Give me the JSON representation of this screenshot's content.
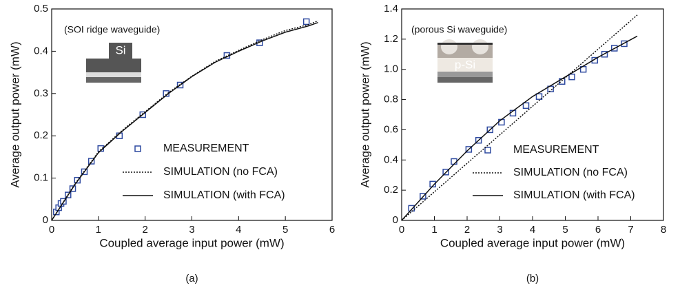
{
  "chart_data": [
    {
      "type": "line",
      "caption": "(a)",
      "x_label": "Coupled average input power (mW)",
      "y_label": "Average output power (mW)",
      "annotations": [
        "(SOI ridge waveguide)",
        "Si"
      ],
      "xlim": [
        0,
        6
      ],
      "xticks": [
        0,
        1,
        2,
        3,
        4,
        5,
        6
      ],
      "ylim": [
        0,
        0.5
      ],
      "yticks": [
        0,
        0.1,
        0.2,
        0.3,
        0.4,
        0.5
      ],
      "series": [
        {
          "name": "MEASUREMENT",
          "style": "markers",
          "color": "#2e4aa0",
          "x": [
            0.1,
            0.15,
            0.2,
            0.25,
            0.35,
            0.45,
            0.55,
            0.7,
            0.85,
            1.05,
            1.45,
            1.95,
            2.45,
            2.75,
            3.75,
            4.45,
            5.45
          ],
          "values": [
            0.02,
            0.03,
            0.04,
            0.045,
            0.06,
            0.075,
            0.095,
            0.115,
            0.14,
            0.17,
            0.2,
            0.25,
            0.3,
            0.32,
            0.39,
            0.42,
            0.47
          ]
        },
        {
          "name": "SIMULATION (no FCA)",
          "style": "dotted",
          "color": "#111111",
          "x": [
            0,
            0.5,
            1,
            1.5,
            2,
            2.5,
            3,
            3.5,
            4,
            4.5,
            5,
            5.5,
            5.7
          ],
          "values": [
            0,
            0.087,
            0.162,
            0.212,
            0.257,
            0.302,
            0.341,
            0.376,
            0.402,
            0.427,
            0.449,
            0.463,
            0.472
          ]
        },
        {
          "name": "SIMULATION (with FCA)",
          "style": "solid",
          "color": "#111111",
          "x": [
            0,
            0.5,
            1,
            1.5,
            2,
            2.5,
            3,
            3.5,
            4,
            4.5,
            5,
            5.5,
            5.7
          ],
          "values": [
            0,
            0.085,
            0.16,
            0.21,
            0.255,
            0.3,
            0.34,
            0.374,
            0.4,
            0.424,
            0.445,
            0.46,
            0.468
          ]
        }
      ]
    },
    {
      "type": "line",
      "caption": "(b)",
      "x_label": "Coupled average input power (mW)",
      "y_label": "Average output power (mW)",
      "annotations": [
        "(porous Si waveguide)",
        "p-Si"
      ],
      "xlim": [
        0,
        8
      ],
      "xticks": [
        0,
        1,
        2,
        3,
        4,
        5,
        6,
        7,
        8
      ],
      "ylim": [
        0,
        1.4
      ],
      "yticks": [
        0,
        0.2,
        0.4,
        0.6,
        0.8,
        {
          "value": 1,
          "label": "1.0"
        },
        1.2,
        1.4
      ],
      "series": [
        {
          "name": "MEASUREMENT",
          "style": "markers",
          "color": "#2e4aa0",
          "x": [
            0.3,
            0.65,
            0.95,
            1.35,
            1.6,
            2.05,
            2.35,
            2.7,
            3.05,
            3.4,
            3.8,
            4.2,
            4.55,
            4.9,
            5.2,
            5.55,
            5.9,
            6.2,
            6.5,
            6.8
          ],
          "values": [
            0.08,
            0.16,
            0.24,
            0.32,
            0.39,
            0.47,
            0.53,
            0.6,
            0.65,
            0.71,
            0.76,
            0.82,
            0.87,
            0.92,
            0.95,
            1.0,
            1.06,
            1.1,
            1.14,
            1.17
          ]
        },
        {
          "name": "SIMULATION (no FCA)",
          "style": "dotted",
          "color": "#111111",
          "x": [
            0,
            7.2
          ],
          "values": [
            0,
            1.36
          ]
        },
        {
          "name": "SIMULATION (with FCA)",
          "style": "solid",
          "color": "#111111",
          "x": [
            0,
            1,
            2,
            3,
            4,
            5,
            6,
            7.2
          ],
          "values": [
            0,
            0.24,
            0.46,
            0.66,
            0.82,
            0.95,
            1.08,
            1.22
          ]
        }
      ]
    }
  ]
}
